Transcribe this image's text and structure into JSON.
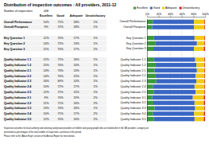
{
  "title": "Distribution of inspection outcomes : All providers, 2011-12",
  "inspections": {
    "label": "Number of inspections",
    "value": "408"
  },
  "table": {
    "columns": [
      "Excellent",
      "Good",
      "Adequate",
      "Unsatisfactory"
    ],
    "rows": [
      {
        "label": "Overall Performance",
        "cells": [
          "10%",
          "71%",
          "18%",
          "1%"
        ]
      },
      {
        "label": "Overall Prospects",
        "cells": [
          "9%",
          "72%",
          "18%",
          "1%"
        ]
      },
      null,
      {
        "label": "Key Question 1",
        "cells": [
          "12%",
          "70%",
          "17%",
          "1%"
        ]
      },
      {
        "label": "Key Question 2",
        "cells": [
          "14%",
          "72%",
          "13%",
          "1%"
        ]
      },
      {
        "label": "Key Question 3",
        "cells": [
          "11%",
          "70%",
          "17%",
          "2%"
        ]
      },
      null,
      {
        "label": "Quality Indicator 1.1",
        "cells": [
          "12%",
          "71%",
          "16%",
          "1%"
        ]
      },
      {
        "label": "Quality Indicator 1.2",
        "cells": [
          "15%",
          "70%",
          "14%",
          "1%"
        ]
      },
      {
        "label": "Quality Indicator 2.1",
        "cells": [
          "13%",
          "73%",
          "13%",
          "1%"
        ]
      },
      {
        "label": "Quality Indicator 2.2",
        "cells": [
          "14%",
          "70%",
          "15%",
          "1%"
        ]
      },
      {
        "label": "Quality Indicator 2.3",
        "cells": [
          "16%",
          "69%",
          "14%",
          "1%"
        ]
      },
      {
        "label": "Quality Indicator 2.4",
        "cells": [
          "10%",
          "72%",
          "17%",
          "1%"
        ]
      },
      {
        "label": "Quality Indicator 2.5",
        "cells": [
          "12%",
          "72%",
          "15%",
          "1%"
        ]
      },
      {
        "label": "Quality Indicator 3.1",
        "cells": [
          "9%",
          "70%",
          "19%",
          "2%"
        ]
      },
      {
        "label": "Quality Indicator 3.2",
        "cells": [
          "11%",
          "71%",
          "16%",
          "2%"
        ]
      },
      {
        "label": "Quality Indicator 3.3",
        "cells": [
          "13%",
          "70%",
          "16%",
          "1%"
        ]
      },
      {
        "label": "Quality Indicator 3.4",
        "cells": [
          "10%",
          "71%",
          "17%",
          "2%"
        ]
      },
      {
        "label": "Quality Indicator 3.5",
        "cells": [
          "12%",
          "70%",
          "16%",
          "2%"
        ]
      }
    ]
  },
  "note": [
    "Inspection outcomes for local authority and voluntary and private providers of children and young people who are looked after in the 'All providers' category are",
    "presented as percentages of the total number of inspections carried out in the period.",
    "Please refer to the 'About Estyn' section of the Annual Report for more details."
  ],
  "chart_data": {
    "type": "bar",
    "orientation": "horizontal",
    "stacked": true,
    "grid": true,
    "legend": "top",
    "categories": [
      "Overall Performance",
      "Overall Prospects",
      null,
      "Key Question 1",
      "Key Question 2",
      "Key Question 3",
      null,
      "Quality Indicator 1.1",
      "Quality Indicator 1.2",
      "Quality Indicator 2.1",
      "Quality Indicator 2.2",
      "Quality Indicator 2.3",
      "Quality Indicator 2.4",
      "Quality Indicator 2.5",
      "Quality Indicator 3.1",
      "Quality Indicator 3.2",
      "Quality Indicator 3.3",
      "Quality Indicator 3.4",
      "Quality Indicator 3.5"
    ],
    "xlim": [
      0,
      100
    ],
    "xticks": [
      {
        "value": 0,
        "label": "0%"
      },
      {
        "value": 20,
        "label": "20%"
      },
      {
        "value": 40,
        "label": "40%"
      },
      {
        "value": 60,
        "label": "60%"
      },
      {
        "value": 80,
        "label": "80%"
      },
      {
        "value": 100,
        "label": "100%"
      }
    ],
    "series": [
      {
        "name": "Excellent",
        "color": "#3a9a3a",
        "values": [
          10,
          9,
          null,
          12,
          14,
          11,
          null,
          12,
          15,
          13,
          14,
          16,
          10,
          12,
          9,
          11,
          13,
          10,
          12
        ]
      },
      {
        "name": "Good",
        "color": "#3a66c4",
        "values": [
          71,
          72,
          null,
          70,
          72,
          70,
          null,
          71,
          70,
          73,
          70,
          69,
          72,
          72,
          70,
          71,
          70,
          71,
          70
        ]
      },
      {
        "name": "Adequate",
        "color": "#f2cc1a",
        "values": [
          18,
          18,
          null,
          17,
          13,
          17,
          null,
          16,
          14,
          13,
          15,
          14,
          17,
          15,
          19,
          16,
          16,
          17,
          16
        ]
      },
      {
        "name": "Unsatisfactory",
        "color": "#cc2222",
        "values": [
          1,
          1,
          null,
          1,
          1,
          2,
          null,
          1,
          1,
          1,
          1,
          1,
          1,
          1,
          2,
          2,
          1,
          2,
          2
        ]
      }
    ]
  }
}
